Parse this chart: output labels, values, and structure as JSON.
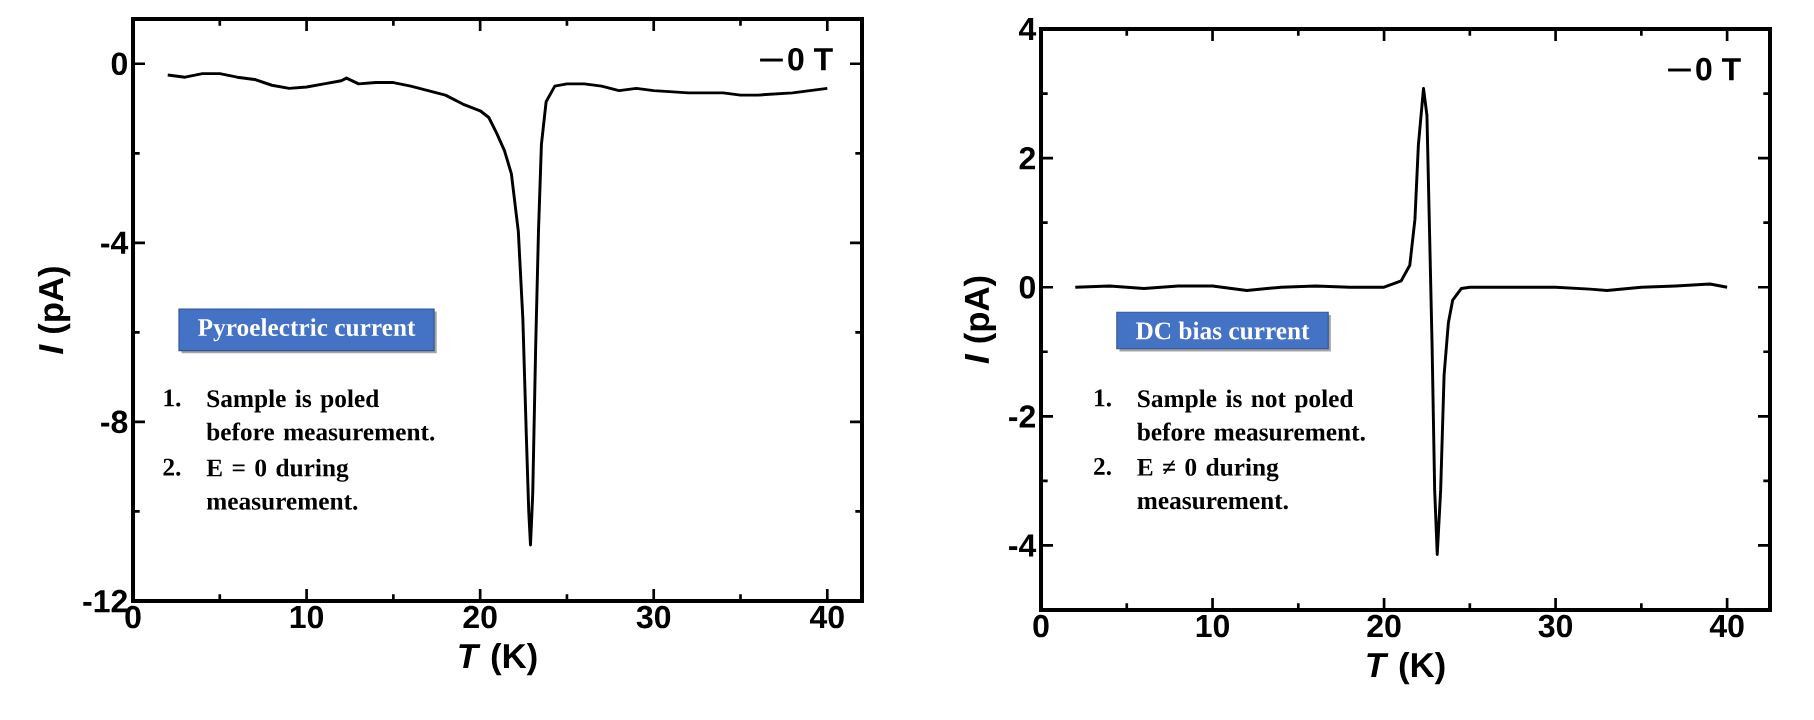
{
  "chart_data": [
    {
      "type": "line",
      "xlabel": "*T* (K)",
      "ylabel": "*I* (pA)",
      "xlim": [
        0,
        42
      ],
      "ylim": [
        -12,
        1
      ],
      "xticks": [
        0,
        10,
        20,
        30,
        40
      ],
      "yticks": [
        -12,
        -8,
        -4,
        0
      ],
      "legend": "top right",
      "line_style": "solid",
      "annotations": [
        "Pyroelectric current",
        "1.",
        "Sample is poled before measurement.",
        "2.",
        "E = 0 during measurement."
      ],
      "series": [
        {
          "name": "0 T",
          "color": "#000000",
          "x": [
            2,
            3,
            4,
            5,
            6,
            7,
            8,
            9,
            10,
            11,
            12,
            12.3,
            13,
            14,
            15,
            16,
            17,
            18,
            19,
            20,
            20.5,
            20.95,
            21.4,
            21.8,
            22.2,
            22.46,
            22.66,
            22.8,
            22.9,
            23.03,
            23.2,
            23.36,
            23.53,
            23.8,
            24.3,
            25,
            26,
            27,
            28,
            29,
            30,
            32,
            34,
            35,
            36,
            38,
            39,
            40
          ],
          "values": [
            -0.25,
            -0.3,
            -0.22,
            -0.22,
            -0.3,
            -0.35,
            -0.48,
            -0.55,
            -0.52,
            -0.45,
            -0.38,
            -0.32,
            -0.45,
            -0.42,
            -0.42,
            -0.5,
            -0.6,
            -0.7,
            -0.9,
            -1.05,
            -1.2,
            -1.55,
            -1.94,
            -2.46,
            -3.75,
            -5.7,
            -8.3,
            -10.0,
            -10.75,
            -9.6,
            -6.3,
            -3.75,
            -1.8,
            -0.85,
            -0.5,
            -0.45,
            -0.45,
            -0.5,
            -0.6,
            -0.55,
            -0.6,
            -0.65,
            -0.65,
            -0.7,
            -0.7,
            -0.65,
            -0.6,
            -0.55
          ]
        }
      ]
    },
    {
      "type": "line",
      "xlabel": "*T* (K)",
      "ylabel": "*I* (pA)",
      "xlim": [
        0,
        42.5
      ],
      "ylim": [
        -5,
        4
      ],
      "xticks": [
        0,
        10,
        20,
        30,
        40
      ],
      "yticks": [
        -4,
        -2,
        0,
        2,
        4
      ],
      "legend": "top right",
      "line_style": "solid",
      "annotations": [
        "DC bias current",
        "1.",
        "Sample is not poled before measurement.",
        "2.",
        "E ≠ 0 during measurement."
      ],
      "series": [
        {
          "name": "0 T",
          "color": "#000000",
          "x": [
            2,
            4,
            6,
            8,
            10,
            12,
            14,
            16,
            18,
            20,
            21,
            21.5,
            21.8,
            22.0,
            22.3,
            22.5,
            22.65,
            22.8,
            22.95,
            23.1,
            23.3,
            23.5,
            23.75,
            24.0,
            24.5,
            25,
            27,
            30,
            32,
            33,
            35,
            37,
            39,
            40
          ],
          "values": [
            0,
            0.02,
            -0.02,
            0.02,
            0.02,
            -0.05,
            0,
            0.02,
            0,
            0,
            0.1,
            0.34,
            1.05,
            2.2,
            3.08,
            2.66,
            0.88,
            -0.91,
            -3.14,
            -4.14,
            -3.14,
            -1.36,
            -0.55,
            -0.2,
            -0.02,
            0,
            0,
            0,
            -0.03,
            -0.05,
            0,
            0.02,
            0.05,
            0
          ]
        }
      ]
    }
  ]
}
